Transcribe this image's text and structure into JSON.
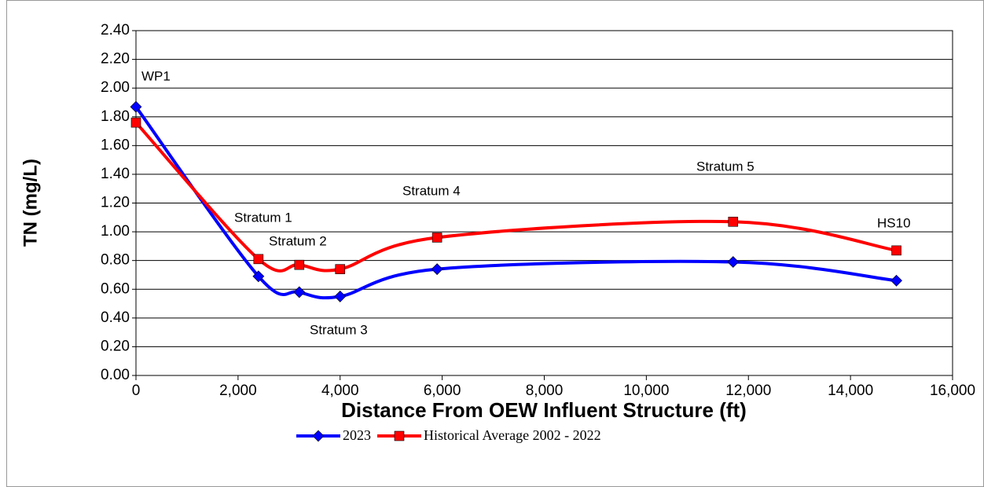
{
  "chart_data": {
    "type": "line",
    "xlabel": "Distance From OEW Influent Structure (ft)",
    "ylabel": "TN (mg/L)",
    "x": [
      0,
      2400,
      3200,
      4000,
      5900,
      11700,
      14900
    ],
    "series": [
      {
        "name": "2023",
        "color": "#0000ff",
        "marker": "diamond",
        "values": [
          1.87,
          0.69,
          0.58,
          0.55,
          0.74,
          0.79,
          0.66
        ]
      },
      {
        "name": "Historical Average 2002 - 2022",
        "color": "#ff0000",
        "marker": "square",
        "values": [
          1.76,
          0.81,
          0.77,
          0.74,
          0.96,
          1.07,
          0.87
        ]
      }
    ],
    "annotations": [
      "WP1",
      "Stratum 1",
      "Stratum 2",
      "Stratum 3",
      "Stratum 4",
      "Stratum 5",
      "HS10"
    ],
    "xlim": [
      0,
      16000
    ],
    "xticks": [
      0,
      {
        "value": 2000,
        "label": "2,000"
      },
      {
        "value": 4000,
        "label": "4,000"
      },
      {
        "value": 6000,
        "label": "6,000"
      },
      {
        "value": 8000,
        "label": "8,000"
      },
      {
        "value": 10000,
        "label": "10,000"
      },
      {
        "value": 12000,
        "label": "12,000"
      },
      {
        "value": 14000,
        "label": "14,000"
      },
      {
        "value": 16000,
        "label": "16,000"
      }
    ],
    "ylim": [
      0,
      2.4
    ],
    "yticks": [
      {
        "value": 0,
        "label": "0.00"
      },
      {
        "value": 0.2,
        "label": "0.20"
      },
      {
        "value": 0.4,
        "label": "0.40"
      },
      {
        "value": 0.6,
        "label": "0.60"
      },
      {
        "value": 0.8,
        "label": "0.80"
      },
      {
        "value": 1.0,
        "label": "1.00"
      },
      {
        "value": 1.2,
        "label": "1.20"
      },
      {
        "value": 1.4,
        "label": "1.40"
      },
      {
        "value": 1.6,
        "label": "1.60"
      },
      {
        "value": 1.8,
        "label": "1.80"
      },
      {
        "value": 2.0,
        "label": "2.00"
      },
      {
        "value": 2.2,
        "label": "2.20"
      },
      {
        "value": 2.4,
        "label": "2.40"
      }
    ],
    "grid": true,
    "smooth": true,
    "legend": "bottom"
  }
}
